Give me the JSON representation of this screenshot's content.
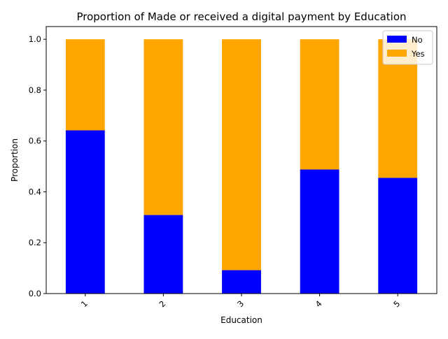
{
  "chart_data": {
    "type": "bar",
    "stacked": true,
    "title": "Proportion of Made or received a digital payment by Education",
    "xlabel": "Education",
    "ylabel": "Proportion",
    "categories": [
      "1",
      "2",
      "3",
      "4",
      "5"
    ],
    "series": [
      {
        "name": "No",
        "color": "#0000ff",
        "values": [
          0.642,
          0.309,
          0.092,
          0.488,
          0.455
        ]
      },
      {
        "name": "Yes",
        "color": "#ffa500",
        "values": [
          0.358,
          0.691,
          0.908,
          0.512,
          0.545
        ]
      }
    ],
    "ylim": [
      0,
      1.05
    ],
    "yticks": [
      "0.0",
      "0.2",
      "0.4",
      "0.6",
      "0.8",
      "1.0"
    ],
    "ytick_values": [
      0,
      0.2,
      0.4,
      0.6,
      0.8,
      1.0
    ],
    "grid": false,
    "legend_position": "top-right",
    "xtick_rotation": 45
  }
}
